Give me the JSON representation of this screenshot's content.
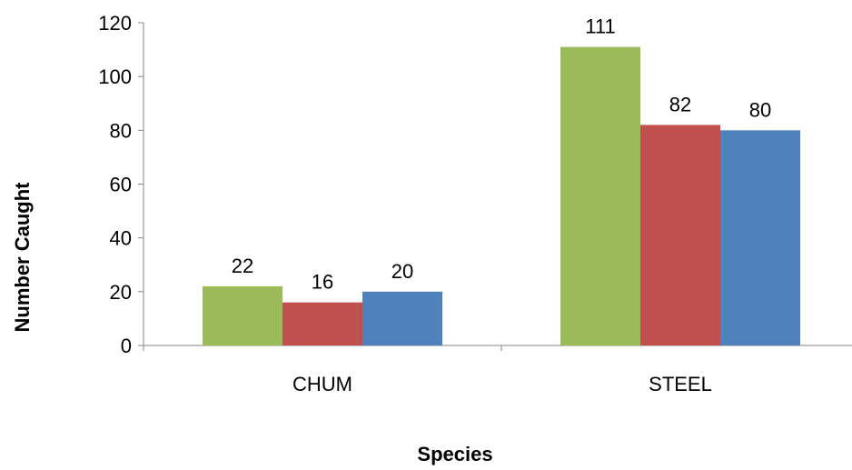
{
  "chart_data": {
    "type": "bar",
    "title": "",
    "xlabel": "Species",
    "ylabel": "Number Caught",
    "categories": [
      "CHUM",
      "STEEL"
    ],
    "series": [
      {
        "values": [
          22,
          111
        ],
        "color": "#9BBB59"
      },
      {
        "values": [
          16,
          82
        ],
        "color": "#C0504D"
      },
      {
        "values": [
          20,
          80
        ],
        "color": "#4F81BD"
      }
    ],
    "ylim": [
      0,
      120
    ],
    "yticks": [
      0,
      20,
      40,
      60,
      80,
      100,
      120
    ],
    "grid": false,
    "legend": "none",
    "data_labels": true
  }
}
